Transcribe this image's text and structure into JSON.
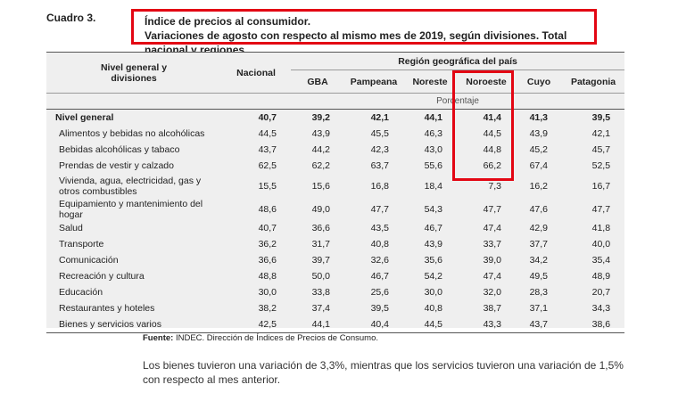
{
  "header": {
    "cuadro": "Cuadro 3.",
    "title_line1": "Índice de precios al consumidor.",
    "title_line2": "Variaciones de agosto con respecto al mismo mes de 2019, según divisiones. Total nacional y regiones"
  },
  "table": {
    "col_first": "Nivel general y divisiones",
    "col_nacional": "Nacional",
    "group_label": "Región geográfica del país",
    "regions": [
      "GBA",
      "Pampeana",
      "Noreste",
      "Noroeste",
      "Cuyo",
      "Patagonia"
    ],
    "unit": "Porcentaje",
    "rows": [
      {
        "label": "Nivel general",
        "values": [
          "40,7",
          "39,2",
          "42,1",
          "44,1",
          "41,4",
          "41,3",
          "39,5"
        ]
      },
      {
        "label": "Alimentos y bebidas no alcohólicas",
        "values": [
          "44,5",
          "43,9",
          "45,5",
          "46,3",
          "44,5",
          "43,9",
          "42,1"
        ]
      },
      {
        "label": "Bebidas alcohólicas y tabaco",
        "values": [
          "43,7",
          "44,2",
          "42,3",
          "43,0",
          "44,8",
          "45,2",
          "45,7"
        ]
      },
      {
        "label": "Prendas de vestir y calzado",
        "values": [
          "62,5",
          "62,2",
          "63,7",
          "55,6",
          "66,2",
          "67,4",
          "52,5"
        ]
      },
      {
        "label": "Vivienda, agua, electricidad, gas y otros combustibles",
        "values": [
          "15,5",
          "15,6",
          "16,8",
          "18,4",
          "7,3",
          "16,2",
          "16,7"
        ]
      },
      {
        "label": "Equipamiento y mantenimiento del hogar",
        "values": [
          "48,6",
          "49,0",
          "47,7",
          "54,3",
          "47,7",
          "47,6",
          "47,7"
        ]
      },
      {
        "label": "Salud",
        "values": [
          "40,7",
          "36,6",
          "43,5",
          "46,7",
          "47,4",
          "42,9",
          "41,8"
        ]
      },
      {
        "label": "Transporte",
        "values": [
          "36,2",
          "31,7",
          "40,8",
          "43,9",
          "33,7",
          "37,7",
          "40,0"
        ]
      },
      {
        "label": "Comunicación",
        "values": [
          "36,6",
          "39,7",
          "32,6",
          "35,6",
          "39,0",
          "34,2",
          "35,4"
        ]
      },
      {
        "label": "Recreación y cultura",
        "values": [
          "48,8",
          "50,0",
          "46,7",
          "54,2",
          "47,4",
          "49,5",
          "48,9"
        ]
      },
      {
        "label": "Educación",
        "values": [
          "30,0",
          "33,8",
          "25,6",
          "30,0",
          "32,0",
          "28,3",
          "20,7"
        ]
      },
      {
        "label": "Restaurantes y hoteles",
        "values": [
          "38,2",
          "37,4",
          "39,5",
          "40,8",
          "38,7",
          "37,1",
          "34,3"
        ]
      },
      {
        "label": "Bienes y servicios varios",
        "values": [
          "42,5",
          "44,1",
          "40,4",
          "44,5",
          "43,3",
          "43,7",
          "38,6"
        ]
      }
    ]
  },
  "source": {
    "label": "Fuente:",
    "text": " INDEC. Dirección de Índices de Precios de Consumo."
  },
  "note": "Los bienes tuvieron una variación de 3,3%, mientras que los servicios tuvieron una variación de 1,5% con respecto al mes anterior.",
  "colors": {
    "highlight": "#e30613",
    "table_bg": "#efefef"
  }
}
